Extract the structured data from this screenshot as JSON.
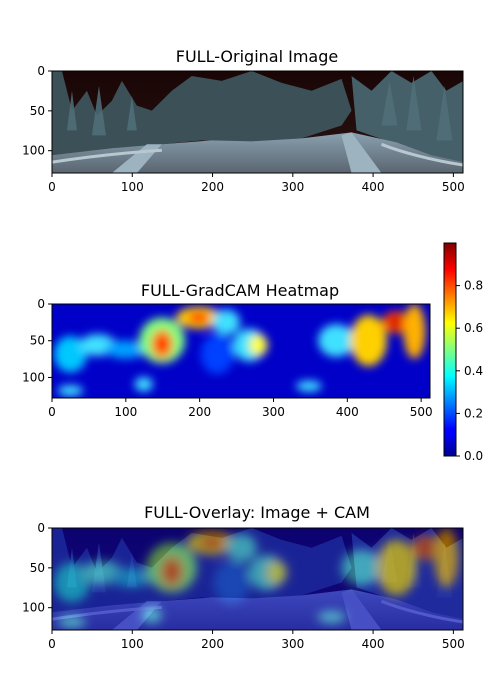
{
  "panels": [
    {
      "title": "FULL-Original Image",
      "kind": "photo",
      "x_ticks": [
        "0",
        "100",
        "200",
        "300",
        "400",
        "500"
      ],
      "y_ticks": [
        "0",
        "50",
        "100"
      ]
    },
    {
      "title": "FULL-GradCAM Heatmap",
      "kind": "heatmap",
      "x_ticks": [
        "0",
        "100",
        "200",
        "300",
        "400",
        "500"
      ],
      "y_ticks": [
        "0",
        "50",
        "100"
      ]
    },
    {
      "title": "FULL-Overlay: Image + CAM",
      "kind": "overlay",
      "x_ticks": [
        "0",
        "100",
        "200",
        "300",
        "400",
        "500"
      ],
      "y_ticks": [
        "0",
        "50",
        "100"
      ]
    }
  ],
  "colorbar": {
    "cmap": "jet",
    "range": [
      0.0,
      1.0
    ],
    "ticks": [
      "0.0",
      "0.2",
      "0.4",
      "0.6",
      "0.8"
    ]
  },
  "chart_data": [
    {
      "type": "heatmap",
      "title": "FULL-Original Image",
      "content": "photo",
      "xlim": [
        0,
        512
      ],
      "ylim": [
        128,
        0
      ]
    },
    {
      "type": "heatmap",
      "title": "FULL-GradCAM Heatmap",
      "cmap": "jet",
      "vmin": 0,
      "vmax": 1,
      "xlim": [
        0,
        512
      ],
      "ylim": [
        128,
        0
      ],
      "hotspots": [
        {
          "x": 150,
          "y": 55,
          "value": 0.85
        },
        {
          "x": 195,
          "y": 20,
          "value": 0.92
        },
        {
          "x": 230,
          "y": 35,
          "value": 0.55
        },
        {
          "x": 270,
          "y": 55,
          "value": 0.5
        },
        {
          "x": 470,
          "y": 30,
          "value": 0.9
        },
        {
          "x": 440,
          "y": 50,
          "value": 0.6
        },
        {
          "x": 20,
          "y": 70,
          "value": 0.5
        },
        {
          "x": 60,
          "y": 55,
          "value": 0.45
        }
      ]
    },
    {
      "type": "heatmap",
      "title": "FULL-Overlay: Image + CAM",
      "cmap": "jet",
      "xlim": [
        0,
        512
      ],
      "ylim": [
        128,
        0
      ]
    }
  ]
}
